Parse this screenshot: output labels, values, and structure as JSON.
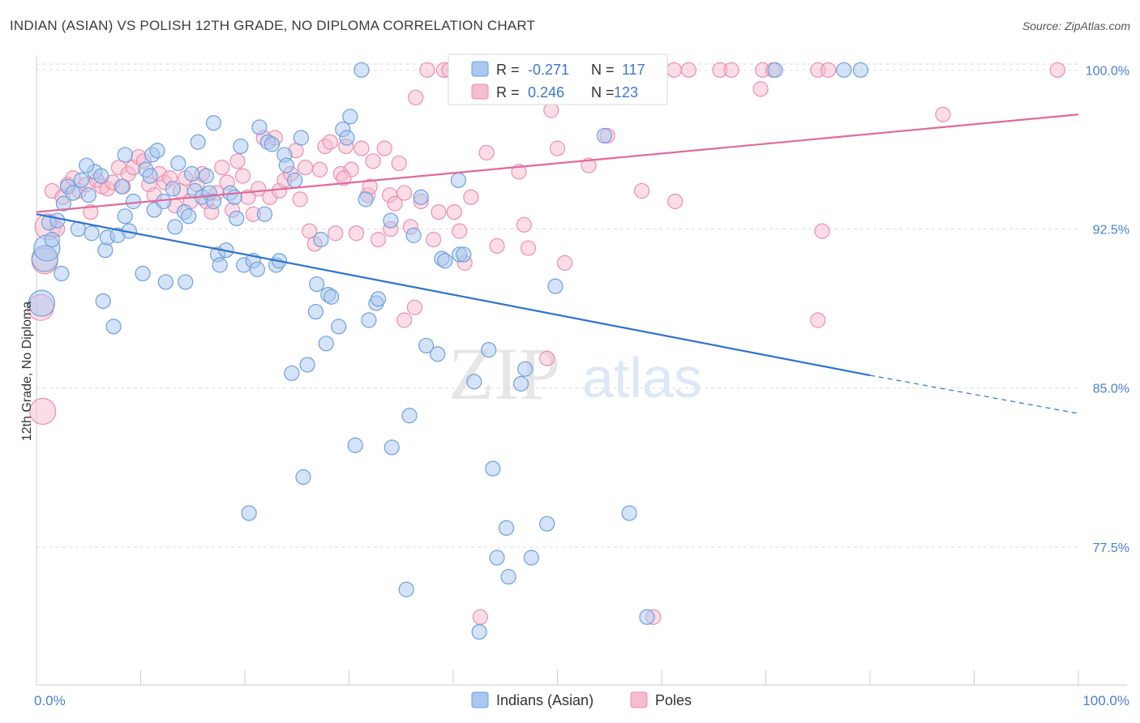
{
  "title": "INDIAN (ASIAN) VS POLISH 12TH GRADE, NO DIPLOMA CORRELATION CHART",
  "source": "Source: ZipAtlas.com",
  "watermark": {
    "zip": "ZIP",
    "atlas": "atlas"
  },
  "legend": {
    "r_label": "R =",
    "n_label": "N =",
    "rows": [
      {
        "r": "-0.271",
        "n": "117"
      },
      {
        "r": "0.246",
        "n": "123"
      }
    ]
  },
  "chart_data": {
    "type": "scatter",
    "ylabel": "12th Grade, No Diploma",
    "xlabel": "",
    "xlim": [
      0,
      100
    ],
    "ylim": [
      71.0,
      100.7
    ],
    "x_tick_labels": [
      "0.0%",
      "100.0%"
    ],
    "y_ticks": [
      77.5,
      85.0,
      92.5,
      100.0
    ],
    "y_tick_labels": [
      "77.5%",
      "85.0%",
      "92.5%",
      "100.0%"
    ],
    "grid": true,
    "legend_position": "top-center",
    "colors": {
      "Indians (Asian)": {
        "fill": "#a9c8ef",
        "stroke": "#6f9fdc",
        "line": "#2f72d0"
      },
      "Poles": {
        "fill": "#f6bcd0",
        "stroke": "#ea8fae",
        "line": "#e2699a"
      }
    },
    "series": [
      {
        "name": "Indians (Asian)",
        "trend": {
          "x0": 0,
          "y0": 93.2,
          "x1": 80,
          "y1": 85.6,
          "dashed_to_x": 100,
          "dashed_to_y": 83.8
        },
        "points": [
          [
            0.5,
            89.0
          ],
          [
            0.8,
            91.1
          ],
          [
            1.0,
            91.6
          ],
          [
            1.2,
            92.8
          ],
          [
            1.5,
            92.0
          ],
          [
            2.0,
            92.9
          ],
          [
            2.4,
            90.4
          ],
          [
            2.6,
            93.7
          ],
          [
            3.0,
            94.5
          ],
          [
            3.5,
            94.2
          ],
          [
            4.0,
            92.5
          ],
          [
            4.3,
            94.8
          ],
          [
            5.0,
            94.1
          ],
          [
            5.3,
            92.3
          ],
          [
            5.6,
            95.2
          ],
          [
            6.2,
            95.0
          ],
          [
            6.6,
            91.5
          ],
          [
            6.8,
            92.1
          ],
          [
            7.4,
            87.9
          ],
          [
            7.8,
            92.2
          ],
          [
            8.2,
            94.5
          ],
          [
            8.5,
            93.1
          ],
          [
            8.9,
            92.4
          ],
          [
            9.3,
            93.8
          ],
          [
            10.2,
            90.4
          ],
          [
            10.5,
            95.3
          ],
          [
            10.9,
            95.0
          ],
          [
            11.1,
            96.0
          ],
          [
            11.3,
            93.4
          ],
          [
            11.6,
            96.2
          ],
          [
            12.2,
            93.8
          ],
          [
            12.4,
            90.0
          ],
          [
            13.1,
            94.4
          ],
          [
            13.3,
            92.6
          ],
          [
            13.6,
            95.6
          ],
          [
            14.2,
            93.3
          ],
          [
            14.6,
            93.1
          ],
          [
            14.9,
            95.1
          ],
          [
            15.2,
            94.3
          ],
          [
            15.5,
            96.6
          ],
          [
            15.9,
            94.0
          ],
          [
            16.3,
            95.0
          ],
          [
            16.6,
            94.2
          ],
          [
            17.0,
            93.8
          ],
          [
            17.4,
            91.3
          ],
          [
            17.6,
            90.8
          ],
          [
            18.2,
            91.5
          ],
          [
            18.6,
            94.2
          ],
          [
            19.0,
            94.0
          ],
          [
            19.2,
            93.0
          ],
          [
            19.6,
            96.4
          ],
          [
            19.9,
            90.8
          ],
          [
            20.4,
            79.1
          ],
          [
            20.8,
            91.0
          ],
          [
            21.2,
            90.6
          ],
          [
            21.4,
            97.3
          ],
          [
            21.9,
            93.2
          ],
          [
            22.2,
            96.6
          ],
          [
            22.6,
            96.5
          ],
          [
            23.0,
            90.8
          ],
          [
            23.3,
            91.0
          ],
          [
            23.8,
            96.0
          ],
          [
            24.0,
            95.5
          ],
          [
            24.5,
            85.7
          ],
          [
            24.8,
            94.8
          ],
          [
            25.4,
            96.8
          ],
          [
            25.6,
            80.8
          ],
          [
            26.0,
            86.1
          ],
          [
            26.8,
            88.6
          ],
          [
            26.9,
            89.9
          ],
          [
            27.3,
            92.0
          ],
          [
            27.8,
            87.1
          ],
          [
            28.0,
            89.4
          ],
          [
            28.3,
            89.3
          ],
          [
            29.0,
            87.9
          ],
          [
            29.4,
            97.2
          ],
          [
            29.8,
            96.8
          ],
          [
            30.1,
            97.8
          ],
          [
            30.6,
            82.3
          ],
          [
            31.2,
            100.0
          ],
          [
            31.6,
            93.9
          ],
          [
            31.9,
            88.2
          ],
          [
            32.6,
            89.0
          ],
          [
            32.8,
            89.2
          ],
          [
            34.0,
            92.9
          ],
          [
            34.1,
            82.2
          ],
          [
            35.8,
            83.7
          ],
          [
            36.2,
            92.2
          ],
          [
            36.9,
            94.0
          ],
          [
            37.4,
            87.0
          ],
          [
            38.5,
            86.6
          ],
          [
            38.9,
            91.1
          ],
          [
            39.2,
            91.0
          ],
          [
            40.2,
            100.0
          ],
          [
            40.5,
            94.8
          ],
          [
            40.6,
            91.3
          ],
          [
            41.0,
            91.3
          ],
          [
            42.0,
            85.3
          ],
          [
            42.5,
            73.5
          ],
          [
            43.4,
            86.8
          ],
          [
            43.8,
            81.2
          ],
          [
            45.1,
            78.4
          ],
          [
            45.3,
            76.1
          ],
          [
            46.5,
            85.2
          ],
          [
            46.9,
            85.9
          ],
          [
            47.5,
            77.0
          ],
          [
            49.0,
            78.6
          ],
          [
            49.6,
            100.0
          ],
          [
            49.8,
            89.8
          ],
          [
            54.5,
            96.9
          ],
          [
            56.9,
            79.1
          ],
          [
            58.6,
            74.2
          ],
          [
            70.9,
            100.0
          ],
          [
            77.5,
            100.0
          ],
          [
            79.1,
            100.0
          ],
          [
            54.5,
            100.0
          ],
          [
            51.0,
            100.0
          ],
          [
            52.4,
            100.0
          ],
          [
            35.5,
            75.5
          ],
          [
            44.2,
            77.0
          ],
          [
            14.3,
            90.0
          ],
          [
            8.5,
            96.0
          ],
          [
            6.4,
            89.1
          ],
          [
            4.8,
            95.5
          ],
          [
            17.0,
            97.5
          ]
        ]
      },
      {
        "name": "Poles",
        "trend": {
          "x0": 0,
          "y0": 93.3,
          "x1": 100,
          "y1": 97.9
        },
        "points": [
          [
            0.4,
            88.8
          ],
          [
            0.6,
            83.9
          ],
          [
            0.8,
            91.0
          ],
          [
            1.1,
            92.6
          ],
          [
            1.5,
            94.3
          ],
          [
            2.0,
            92.5
          ],
          [
            2.5,
            94.0
          ],
          [
            3.0,
            94.6
          ],
          [
            3.5,
            94.9
          ],
          [
            4.1,
            94.3
          ],
          [
            4.8,
            94.6
          ],
          [
            5.2,
            93.3
          ],
          [
            5.8,
            94.8
          ],
          [
            6.3,
            94.5
          ],
          [
            6.8,
            94.4
          ],
          [
            7.3,
            94.7
          ],
          [
            7.9,
            95.4
          ],
          [
            8.3,
            94.5
          ],
          [
            8.8,
            95.1
          ],
          [
            9.3,
            95.4
          ],
          [
            9.8,
            95.9
          ],
          [
            10.3,
            95.7
          ],
          [
            10.8,
            94.6
          ],
          [
            11.3,
            94.1
          ],
          [
            11.8,
            95.1
          ],
          [
            12.3,
            94.7
          ],
          [
            12.8,
            94.9
          ],
          [
            13.3,
            93.6
          ],
          [
            13.8,
            94.3
          ],
          [
            14.3,
            94.9
          ],
          [
            14.8,
            93.8
          ],
          [
            15.4,
            94.6
          ],
          [
            15.9,
            95.1
          ],
          [
            16.3,
            93.8
          ],
          [
            16.8,
            93.3
          ],
          [
            17.3,
            94.2
          ],
          [
            17.8,
            95.4
          ],
          [
            18.3,
            94.7
          ],
          [
            18.8,
            93.4
          ],
          [
            19.3,
            95.7
          ],
          [
            19.8,
            95.0
          ],
          [
            20.3,
            94.0
          ],
          [
            20.8,
            93.2
          ],
          [
            21.3,
            94.4
          ],
          [
            21.8,
            96.8
          ],
          [
            22.4,
            94.0
          ],
          [
            22.9,
            96.8
          ],
          [
            23.3,
            94.3
          ],
          [
            23.8,
            94.8
          ],
          [
            24.4,
            95.1
          ],
          [
            24.9,
            96.2
          ],
          [
            25.3,
            93.9
          ],
          [
            25.8,
            95.4
          ],
          [
            26.2,
            92.4
          ],
          [
            26.7,
            91.8
          ],
          [
            27.2,
            95.3
          ],
          [
            27.7,
            96.4
          ],
          [
            28.2,
            96.6
          ],
          [
            28.7,
            92.3
          ],
          [
            29.2,
            95.1
          ],
          [
            29.7,
            96.4
          ],
          [
            30.2,
            95.3
          ],
          [
            30.7,
            92.3
          ],
          [
            31.2,
            96.3
          ],
          [
            31.8,
            94.1
          ],
          [
            32.3,
            95.7
          ],
          [
            32.8,
            92.0
          ],
          [
            33.4,
            96.3
          ],
          [
            33.9,
            94.1
          ],
          [
            34.4,
            93.7
          ],
          [
            34.8,
            95.6
          ],
          [
            35.3,
            94.2
          ],
          [
            35.9,
            92.6
          ],
          [
            36.4,
            98.7
          ],
          [
            36.9,
            93.8
          ],
          [
            37.5,
            100.0
          ],
          [
            38.1,
            92.0
          ],
          [
            38.6,
            93.3
          ],
          [
            39.1,
            100.0
          ],
          [
            39.6,
            100.0
          ],
          [
            40.1,
            93.3
          ],
          [
            40.6,
            92.4
          ],
          [
            41.1,
            90.9
          ],
          [
            41.7,
            94.0
          ],
          [
            42.2,
            100.0
          ],
          [
            42.6,
            74.2
          ],
          [
            43.2,
            96.1
          ],
          [
            44.2,
            91.7
          ],
          [
            44.8,
            100.0
          ],
          [
            45.3,
            100.0
          ],
          [
            46.3,
            95.2
          ],
          [
            46.8,
            92.7
          ],
          [
            47.2,
            91.6
          ],
          [
            47.8,
            100.0
          ],
          [
            48.3,
            100.0
          ],
          [
            49.0,
            86.4
          ],
          [
            50.0,
            96.3
          ],
          [
            50.7,
            90.9
          ],
          [
            52.0,
            100.0
          ],
          [
            53.0,
            95.5
          ],
          [
            54.3,
            100.0
          ],
          [
            54.8,
            96.9
          ],
          [
            55.2,
            100.0
          ],
          [
            57.0,
            100.0
          ],
          [
            58.1,
            94.3
          ],
          [
            59.2,
            74.2
          ],
          [
            61.2,
            100.0
          ],
          [
            61.3,
            93.8
          ],
          [
            62.6,
            100.0
          ],
          [
            65.6,
            100.0
          ],
          [
            66.7,
            100.0
          ],
          [
            69.7,
            100.0
          ],
          [
            69.5,
            99.1
          ],
          [
            70.7,
            100.0
          ],
          [
            75.0,
            100.0
          ],
          [
            75.4,
            92.4
          ],
          [
            75.0,
            88.2
          ],
          [
            76.0,
            100.0
          ],
          [
            87.0,
            97.9
          ],
          [
            98.0,
            100.0
          ],
          [
            36.3,
            88.8
          ],
          [
            35.3,
            88.2
          ],
          [
            34.0,
            92.5
          ],
          [
            29.5,
            94.9
          ],
          [
            32.0,
            94.5
          ],
          [
            47.7,
            98.8
          ],
          [
            49.4,
            98.1
          ]
        ]
      }
    ]
  },
  "bottom_legend": [
    {
      "label": "Indians (Asian)"
    },
    {
      "label": "Poles"
    }
  ]
}
